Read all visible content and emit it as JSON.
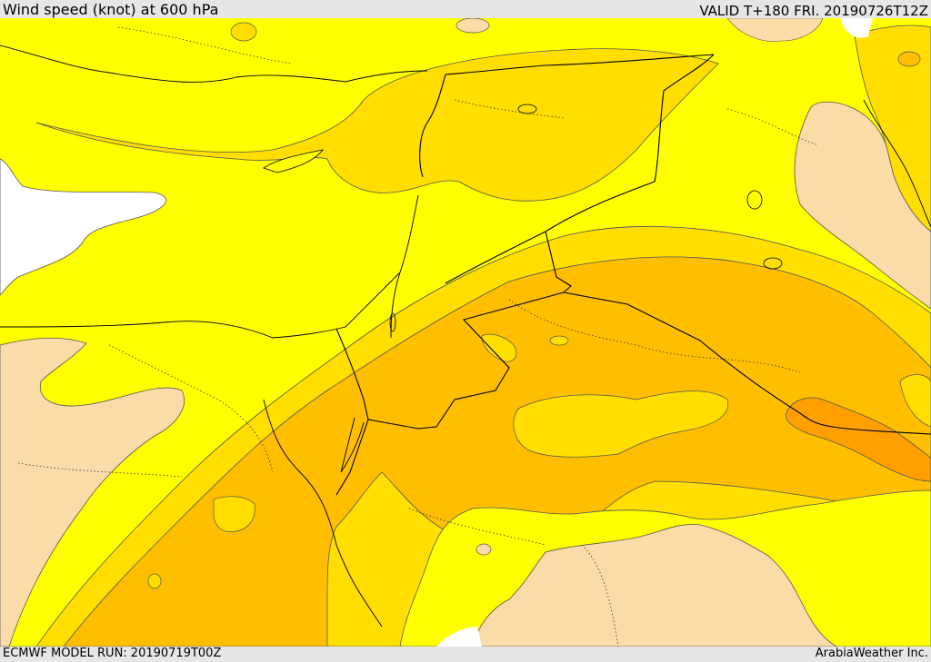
{
  "header": {
    "title": "Wind speed (knot) at 600 hPa",
    "valid": "VALID T+180 FRI. 20190726T12Z"
  },
  "footer": {
    "model_run": "ECMWF MODEL RUN: 20190719T00Z",
    "credit": "ArabiaWeather Inc."
  },
  "map": {
    "colors": {
      "white": "#ffffff",
      "light_tan": "#fbdca8",
      "yellow": "#ffff00",
      "gold": "#ffde00",
      "light_orange": "#ffbe00",
      "orange": "#ffa000",
      "contour": "#555555",
      "border": "#000000",
      "coast": "#000000"
    }
  }
}
